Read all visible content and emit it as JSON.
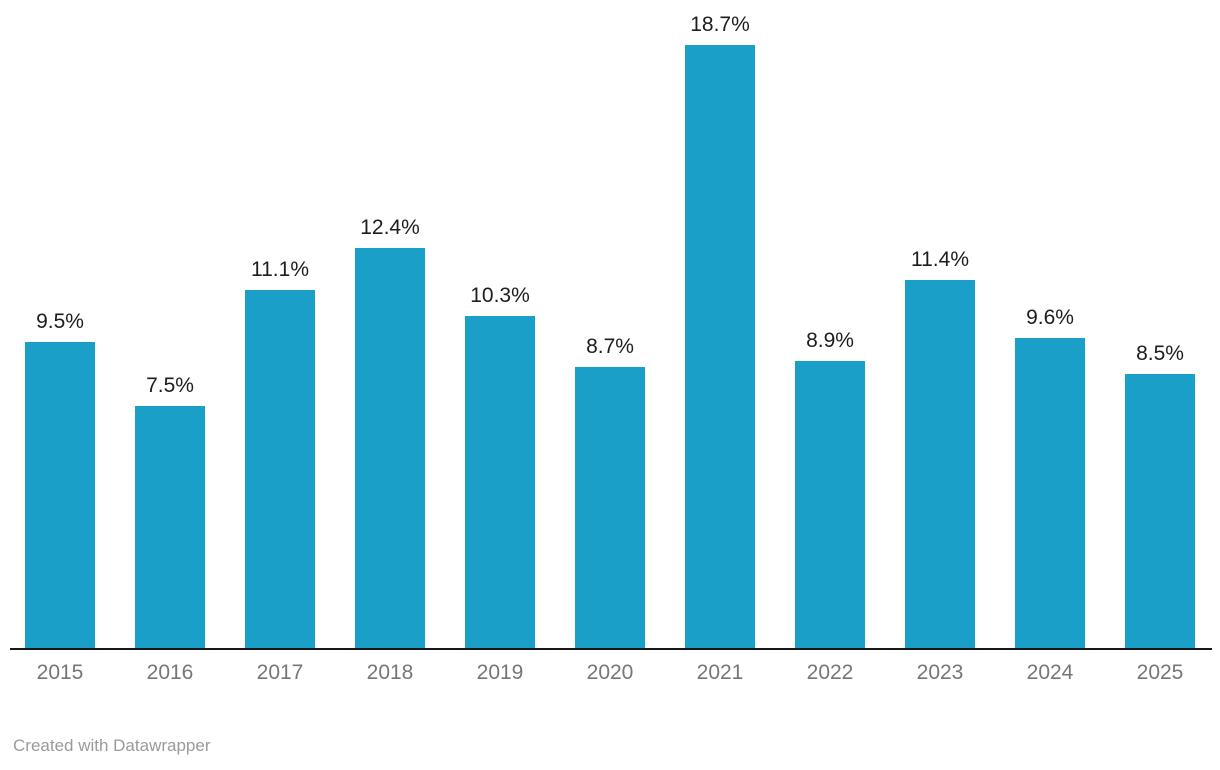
{
  "chart_data": {
    "type": "bar",
    "title": "",
    "xlabel": "",
    "ylabel": "",
    "categories": [
      "2015",
      "2016",
      "2017",
      "2018",
      "2019",
      "2020",
      "2021",
      "2022",
      "2023",
      "2024",
      "2025"
    ],
    "values": [
      9.5,
      7.5,
      11.1,
      12.4,
      10.3,
      8.7,
      18.7,
      8.9,
      11.4,
      9.6,
      8.5
    ],
    "value_labels": [
      "9.5%",
      "7.5%",
      "11.1%",
      "12.4%",
      "10.3%",
      "8.7%",
      "18.7%",
      "8.9%",
      "11.4%",
      "9.6%",
      "8.5%"
    ],
    "ylim": [
      0,
      18.7
    ],
    "grid": false,
    "legend": false,
    "bar_color": "#1AA0C8",
    "value_label_color": "#1d1d1d",
    "axis_line_color": "#18181a",
    "tick_label_color": "#767676"
  },
  "attribution": {
    "text": "Created with Datawrapper"
  }
}
